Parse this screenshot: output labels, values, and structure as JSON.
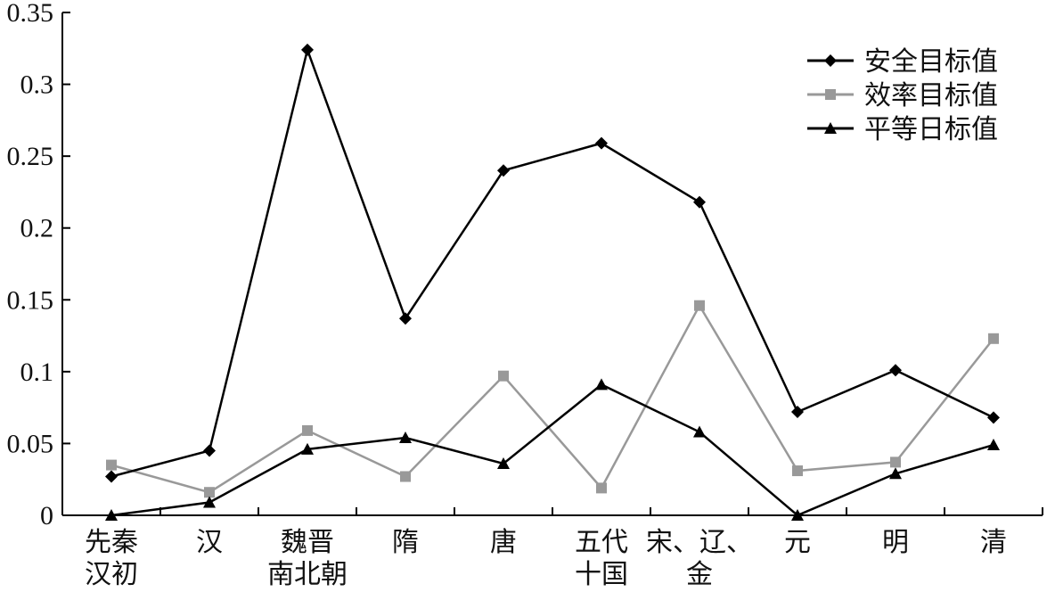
{
  "chart_data": {
    "type": "line",
    "title": "",
    "xlabel": "",
    "ylabel": "",
    "ylim": [
      0,
      0.35
    ],
    "yticks": [
      "0",
      "0.05",
      "0.1",
      "0.15",
      "0.2",
      "0.25",
      "0.3",
      "0.35"
    ],
    "categories": [
      [
        "先秦",
        "汉初"
      ],
      [
        "汉"
      ],
      [
        "魏晋",
        "南北朝"
      ],
      [
        "隋"
      ],
      [
        "唐"
      ],
      [
        "五代",
        "十国"
      ],
      [
        "宋、辽、",
        "金"
      ],
      [
        "元"
      ],
      [
        "明"
      ],
      [
        "清"
      ]
    ],
    "series": [
      {
        "name": "安全目标值",
        "color": "#000000",
        "marker": "diamond",
        "values": [
          0.027,
          0.045,
          0.324,
          0.137,
          0.24,
          0.259,
          0.218,
          0.072,
          0.101,
          0.068
        ]
      },
      {
        "name": "效率目标值",
        "color": "#999999",
        "marker": "square",
        "values": [
          0.035,
          0.016,
          0.059,
          0.027,
          0.097,
          0.019,
          0.146,
          0.031,
          0.037,
          0.123
        ]
      },
      {
        "name": "平等日标值",
        "color": "#000000",
        "marker": "triangle",
        "values": [
          0.0,
          0.009,
          0.046,
          0.054,
          0.036,
          0.091,
          0.058,
          0.0,
          0.029,
          0.049
        ]
      }
    ],
    "legend_position": "top-right",
    "grid": false
  }
}
